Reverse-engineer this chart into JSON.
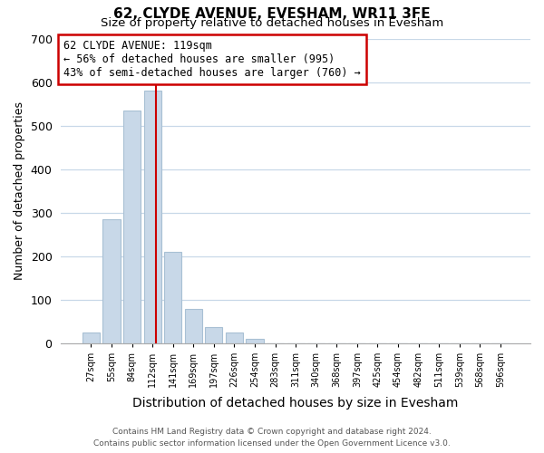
{
  "title": "62, CLYDE AVENUE, EVESHAM, WR11 3FE",
  "subtitle": "Size of property relative to detached houses in Evesham",
  "xlabel": "Distribution of detached houses by size in Evesham",
  "ylabel": "Number of detached properties",
  "bar_labels": [
    "27sqm",
    "55sqm",
    "84sqm",
    "112sqm",
    "141sqm",
    "169sqm",
    "197sqm",
    "226sqm",
    "254sqm",
    "283sqm",
    "311sqm",
    "340sqm",
    "368sqm",
    "397sqm",
    "425sqm",
    "454sqm",
    "482sqm",
    "511sqm",
    "539sqm",
    "568sqm",
    "596sqm"
  ],
  "bar_values": [
    25,
    284,
    534,
    581,
    210,
    80,
    37,
    25,
    10,
    0,
    0,
    0,
    0,
    0,
    0,
    0,
    0,
    0,
    0,
    0,
    0
  ],
  "bar_color": "#c8d8e8",
  "bar_edge_color": "#a8c0d4",
  "vline_color": "#cc0000",
  "vline_x": 3.15,
  "ylim_min": 0,
  "ylim_max": 700,
  "yticks": [
    0,
    100,
    200,
    300,
    400,
    500,
    600,
    700
  ],
  "annotation_line1": "62 CLYDE AVENUE: 119sqm",
  "annotation_line2": "← 56% of detached houses are smaller (995)",
  "annotation_line3": "43% of semi-detached houses are larger (760) →",
  "annotation_box_edgecolor": "#cc0000",
  "footer_line1": "Contains HM Land Registry data © Crown copyright and database right 2024.",
  "footer_line2": "Contains public sector information licensed under the Open Government Licence v3.0.",
  "background_color": "#ffffff",
  "grid_color": "#c8d8e8"
}
